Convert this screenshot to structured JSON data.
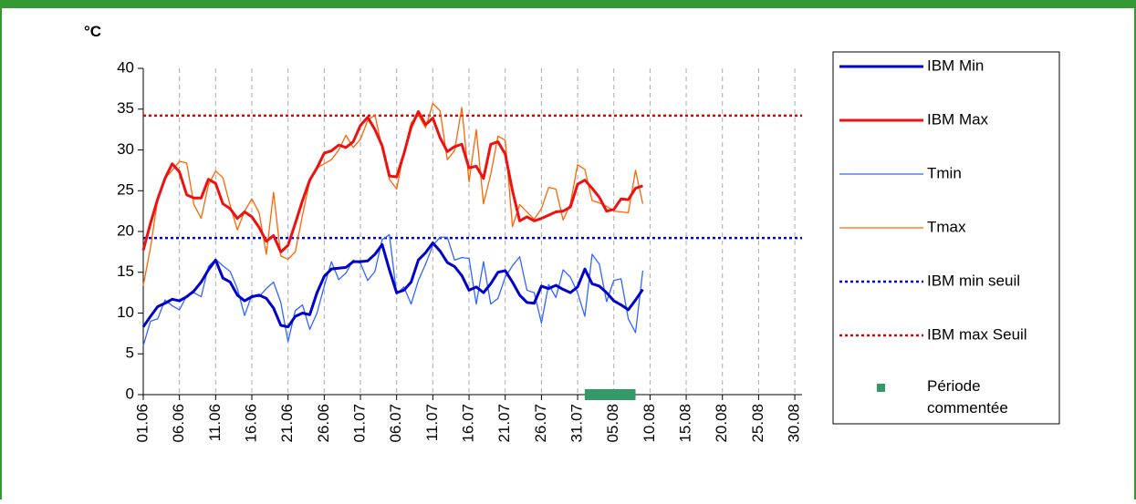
{
  "chart_data": {
    "type": "line",
    "y_label": "°C",
    "x": [
      0,
      1,
      2,
      3,
      4,
      5,
      6,
      7,
      8,
      9,
      10,
      11,
      12,
      13,
      14,
      15,
      16,
      17,
      18,
      19,
      20,
      21,
      22,
      23,
      24,
      25,
      26,
      27,
      28,
      29,
      30,
      31,
      32,
      33,
      34,
      35,
      36,
      37,
      38,
      39,
      40,
      41,
      42,
      43,
      44,
      45,
      46,
      47,
      48,
      49,
      50,
      51,
      52,
      53,
      54,
      55,
      56,
      57,
      58,
      59,
      60,
      61,
      62,
      63,
      64,
      65,
      66,
      67,
      68,
      69
    ],
    "xlim": [
      0,
      91
    ],
    "xticks": [
      {
        "value": 0,
        "label": "01.06"
      },
      {
        "value": 5,
        "label": "06.06"
      },
      {
        "value": 10,
        "label": "11.06"
      },
      {
        "value": 15,
        "label": "16.06"
      },
      {
        "value": 20,
        "label": "21.06"
      },
      {
        "value": 25,
        "label": "26.06"
      },
      {
        "value": 30,
        "label": "01.07"
      },
      {
        "value": 35,
        "label": "06.07"
      },
      {
        "value": 40,
        "label": "11.07"
      },
      {
        "value": 45,
        "label": "16.07"
      },
      {
        "value": 50,
        "label": "21.07"
      },
      {
        "value": 55,
        "label": "26.07"
      },
      {
        "value": 60,
        "label": "31.07"
      },
      {
        "value": 65,
        "label": "05.08"
      },
      {
        "value": 70,
        "label": "10.08"
      },
      {
        "value": 75,
        "label": "15.08"
      },
      {
        "value": 80,
        "label": "20.08"
      },
      {
        "value": 85,
        "label": "25.08"
      },
      {
        "value": 90,
        "label": "30.08"
      }
    ],
    "ylim": [
      0,
      40
    ],
    "yticks": [
      0,
      5,
      10,
      15,
      20,
      25,
      30,
      35,
      40
    ],
    "grid": "x",
    "series": [
      {
        "name": "IBM Min",
        "color": "#0000cc",
        "width": 3,
        "values": [
          8.3,
          9.6,
          10.8,
          11.2,
          11.7,
          11.5,
          12,
          12.7,
          13.8,
          15.3,
          16.5,
          14.3,
          13.8,
          12.2,
          11.5,
          12,
          12.2,
          11.8,
          10.6,
          8.5,
          8.3,
          9.6,
          10,
          9.8,
          12.5,
          14.5,
          15.4,
          15.5,
          15.6,
          16.3,
          16.3,
          16.4,
          17.2,
          18.4,
          15.3,
          12.5,
          12.8,
          13.8,
          16.5,
          17.4,
          18.6,
          17.6,
          16.2,
          15.7,
          14.6,
          12.8,
          13.2,
          12.5,
          13.6,
          15,
          15.2,
          13.8,
          12.2,
          11.3,
          11.2,
          13.3,
          13,
          13.4,
          12.9,
          12.5,
          13.2,
          15.4,
          13.6,
          13.3,
          12.5,
          11.5,
          11,
          10.4,
          11.6,
          12.9
        ]
      },
      {
        "name": "IBM Max",
        "color": "#ee1111",
        "width": 3,
        "values": [
          17.7,
          21,
          24,
          26.5,
          28.3,
          27.3,
          24.5,
          24.1,
          24.1,
          26.4,
          25.9,
          23.4,
          22.8,
          21.6,
          22.4,
          21.8,
          20.5,
          18.8,
          19.5,
          17.5,
          18.3,
          21,
          23.8,
          26.3,
          27.8,
          29.6,
          29.9,
          30.6,
          30.3,
          31,
          33,
          34,
          32.5,
          30.5,
          26.8,
          26.7,
          29.5,
          32.8,
          34.7,
          33.1,
          33.9,
          31.5,
          29.8,
          30.4,
          30.7,
          27.8,
          28,
          26.5,
          30.7,
          31,
          29.5,
          25,
          21.3,
          21.8,
          21.3,
          21.6,
          22,
          22.4,
          22.5,
          23,
          25.8,
          26.3,
          25.3,
          24.2,
          22.5,
          22.7,
          24,
          23.9,
          25.3,
          25.6
        ]
      },
      {
        "name": "Tmin",
        "color": "#3366ff",
        "width": 1.3,
        "values": [
          6,
          9,
          9.3,
          11.6,
          10.9,
          10.4,
          12.1,
          12.5,
          12,
          15.7,
          16.6,
          15.8,
          15.1,
          13,
          9.7,
          12.2,
          12,
          13,
          13.8,
          11.3,
          6.5,
          10.3,
          11,
          8,
          10,
          13.3,
          16.3,
          14.1,
          14.9,
          16.5,
          16.1,
          14,
          15.1,
          19,
          19.6,
          12.3,
          13.2,
          11.1,
          14,
          16,
          18.3,
          19.3,
          19.3,
          16.5,
          16.8,
          16.7,
          11.1,
          16.3,
          11.1,
          11.8,
          14.4,
          15.8,
          16.9,
          12.8,
          12.5,
          8.8,
          13.5,
          11.9,
          15.3,
          14.4,
          12.5,
          9.6,
          17.2,
          16,
          11.4,
          14,
          14.2,
          9.3,
          7.6,
          15.2
        ]
      },
      {
        "name": "Tmax",
        "color": "#ff6600",
        "width": 1.3,
        "values": [
          13.4,
          18,
          24,
          26.5,
          27.5,
          28.6,
          28.4,
          23.3,
          21.6,
          25.7,
          27.4,
          26.6,
          23.2,
          20.2,
          22.5,
          24,
          22.3,
          17.2,
          24.8,
          17,
          16.6,
          17.5,
          22,
          26.2,
          27.8,
          28.3,
          28.8,
          30,
          31.8,
          30.3,
          31.3,
          33.6,
          34.3,
          30.2,
          26.4,
          25.2,
          29.7,
          33.3,
          34.3,
          32.7,
          35.7,
          34.8,
          28.8,
          29.9,
          35.2,
          26.1,
          32.5,
          23.4,
          27,
          31.7,
          31.2,
          20.6,
          23.3,
          22.4,
          21.5,
          22.8,
          25.4,
          25.2,
          21.4,
          23.4,
          28.2,
          27.6,
          23.8,
          23.5,
          23.1,
          22.5,
          22.4,
          22.3,
          27.5,
          23.4
        ]
      }
    ],
    "reference_lines": [
      {
        "name": "IBM min seuil",
        "value": 19.2,
        "color": "#0000cc"
      },
      {
        "name": "IBM max Seuil",
        "value": 34.2,
        "color": "#dd0000"
      }
    ],
    "period": {
      "name": "Période commentée",
      "start": 61,
      "end": 68,
      "color": "#339966"
    }
  }
}
